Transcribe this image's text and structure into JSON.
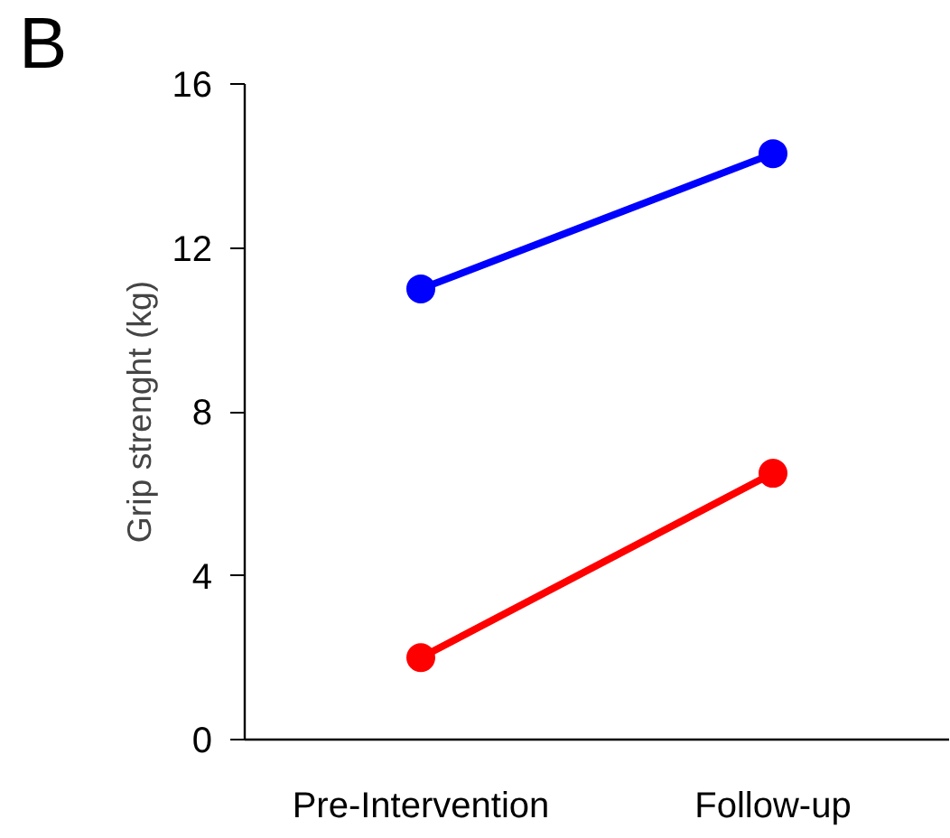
{
  "chart_data": {
    "type": "line",
    "ylabel": "Grip strenght (kg)",
    "categories": [
      "Pre-Intervention",
      "Follow-up"
    ],
    "series": [
      {
        "color": "#0000ff",
        "values": [
          11.0,
          14.3
        ]
      },
      {
        "color": "#ff0000",
        "values": [
          2.0,
          6.5
        ]
      }
    ],
    "ylim": [
      0,
      16
    ],
    "yticks": [
      0,
      4,
      8,
      12,
      16
    ],
    "grid": false,
    "marker": "circle",
    "line_style": "solid",
    "annotations": [
      "B"
    ]
  }
}
